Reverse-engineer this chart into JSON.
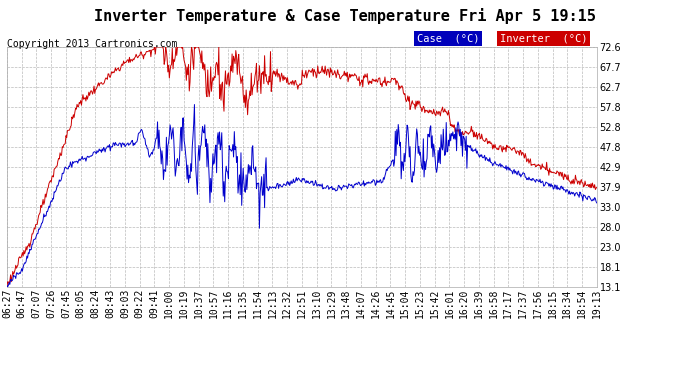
{
  "title": "Inverter Temperature & Case Temperature Fri Apr 5 19:15",
  "copyright": "Copyright 2013 Cartronics.com",
  "legend_case_label": "Case  (°C)",
  "legend_inv_label": "Inverter  (°C)",
  "case_color": "#0000cc",
  "inverter_color": "#cc0000",
  "legend_case_bg": "#0000bb",
  "legend_inv_bg": "#cc0000",
  "bg_color": "#ffffff",
  "plot_bg_color": "#ffffff",
  "grid_color": "#bbbbbb",
  "ylim_min": 13.1,
  "ylim_max": 72.6,
  "yticks": [
    13.1,
    18.1,
    23.0,
    28.0,
    33.0,
    37.9,
    42.9,
    47.8,
    52.8,
    57.8,
    62.7,
    67.7,
    72.6
  ],
  "title_fontsize": 11,
  "copyright_fontsize": 7,
  "tick_fontsize": 7,
  "n_points": 800,
  "time_labels": [
    "06:27",
    "06:47",
    "07:07",
    "07:26",
    "07:45",
    "08:05",
    "08:24",
    "08:43",
    "09:03",
    "09:22",
    "09:41",
    "10:00",
    "10:19",
    "10:37",
    "10:57",
    "11:16",
    "11:35",
    "11:54",
    "12:13",
    "12:32",
    "12:51",
    "13:10",
    "13:29",
    "13:48",
    "14:07",
    "14:26",
    "14:45",
    "15:04",
    "15:23",
    "15:42",
    "16:01",
    "16:20",
    "16:39",
    "16:58",
    "17:17",
    "17:37",
    "17:56",
    "18:15",
    "18:34",
    "18:54",
    "19:13"
  ]
}
